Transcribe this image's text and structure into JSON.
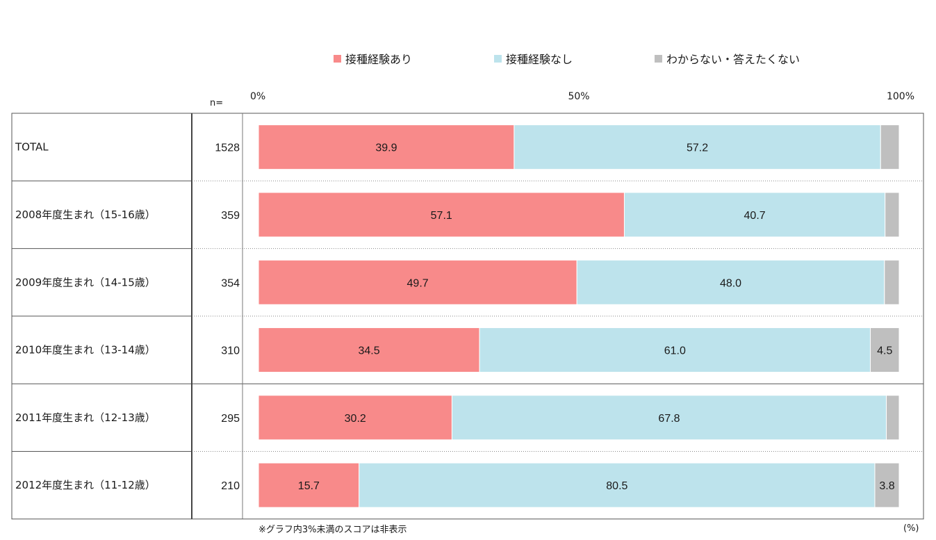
{
  "legend": [
    {
      "label": "接種経験あり",
      "color": "#f88a8a"
    },
    {
      "label": "接種経験なし",
      "color": "#bde3ec"
    },
    {
      "label": "わからない・答えたくない",
      "color": "#bfbfbf"
    }
  ],
  "n_label": "n=",
  "footnote": "※グラフ内3%未満のスコアは非表示",
  "unit_note": "(%)",
  "chart_data": {
    "type": "bar",
    "orientation": "horizontal",
    "stacked": true,
    "percent_scale": true,
    "categories": [
      "TOTAL",
      "2008年度生まれ（15-16歳）",
      "2009年度生まれ（14-15歳）",
      "2010年度生まれ（13-14歳）",
      "2011年度生まれ（12-13歳）",
      "2012年度生まれ（11-12歳）"
    ],
    "n": [
      "1528",
      "359",
      "354",
      "310",
      "295",
      "210"
    ],
    "series": [
      {
        "name": "接種経験あり",
        "color": "#f88a8a",
        "values": [
          39.9,
          57.1,
          49.7,
          34.5,
          30.2,
          15.7
        ]
      },
      {
        "name": "接種経験なし",
        "color": "#bde3ec",
        "values": [
          57.2,
          40.7,
          48.0,
          61.0,
          67.8,
          80.5
        ]
      },
      {
        "name": "わからない・答えたくない",
        "color": "#bfbfbf",
        "values": [
          2.9,
          2.2,
          2.3,
          4.5,
          2.0,
          3.8
        ]
      }
    ],
    "label_threshold": 3,
    "xlim": [
      0,
      100
    ],
    "tick_labels": [
      "0%",
      "50%",
      "100%"
    ],
    "grid": false
  }
}
